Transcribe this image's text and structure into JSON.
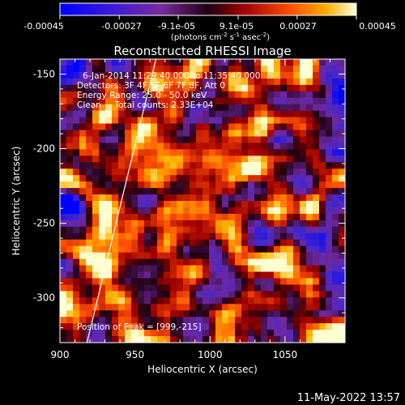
{
  "colorbar": {
    "ticks": [
      "-0.00045",
      "-0.00027",
      "-9.1e-05",
      "9.1e-05",
      "0.00027",
      "0.00045"
    ],
    "min": -0.00045,
    "max": 0.00045,
    "unit_base": "(photons cm",
    "unit_e1": "-2",
    "unit_mid": " s",
    "unit_e2": "-1",
    "unit_mid2": " asec",
    "unit_e3": "-2",
    "unit_end": ")"
  },
  "chart_data": {
    "type": "heatmap",
    "title": "Reconstructed RHESSI Image",
    "xlabel": "Heliocentric X (arcsec)",
    "ylabel": "Heliocentric Y (arcsec)",
    "xlim": [
      900,
      1090
    ],
    "ylim": [
      -330,
      -140
    ],
    "xticks": [
      900,
      950,
      1000,
      1050
    ],
    "yticks": [
      -150,
      -200,
      -250,
      -300
    ],
    "xtick_labels": [
      "900",
      "950",
      "1000",
      "1050"
    ],
    "ytick_labels": [
      "-150",
      "-200",
      "-250",
      "-300"
    ],
    "limb_line": [
      [
        918,
        -330
      ],
      [
        964,
        -140
      ]
    ],
    "annotations": [
      "6-Jan-2014 11:29:40.000 to 11:35:40.000",
      "Detectors: 3F 4F 5F 6F 7F 8F, Att 0",
      "Energy Range: 25.0 - 50.0 keV",
      "Clean     Total counts: 2.33E+04",
      "Position of Peak = [999,-215]"
    ],
    "peak": [
      999,
      -215
    ],
    "colormap": "hot / blue-purple diverging"
  },
  "footer": {
    "timestamp": "11-May-2022 13:57"
  },
  "colors": {
    "background": "#000000",
    "text": "#ffffff"
  }
}
